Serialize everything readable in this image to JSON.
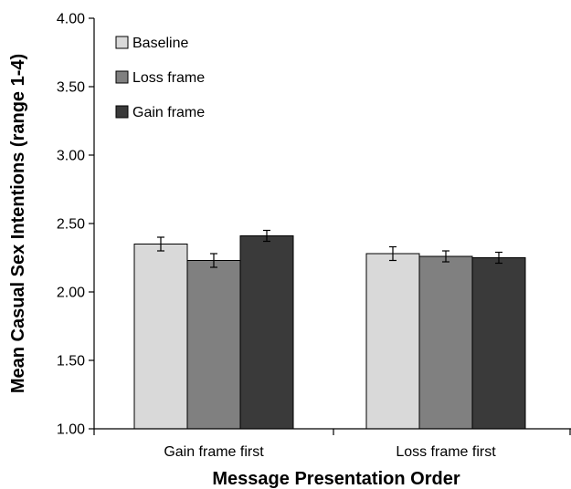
{
  "chart_data": {
    "type": "bar",
    "title": "",
    "xlabel": "Message Presentation Order",
    "ylabel": "Mean Casual Sex Intentions (range 1-4)",
    "ylim": [
      1.0,
      4.0
    ],
    "yticks": [
      "1.00",
      "1.50",
      "2.00",
      "2.50",
      "3.00",
      "3.50",
      "4.00"
    ],
    "ytick_values": [
      1.0,
      1.5,
      2.0,
      2.5,
      3.0,
      3.5,
      4.0
    ],
    "categories": [
      "Gain frame first",
      "Loss frame first"
    ],
    "series": [
      {
        "name": "Baseline",
        "color": "#d9d9d9",
        "values": [
          2.35,
          2.28
        ],
        "errors": [
          0.05,
          0.05
        ]
      },
      {
        "name": "Loss frame",
        "color": "#808080",
        "values": [
          2.23,
          2.26
        ],
        "errors": [
          0.05,
          0.04
        ]
      },
      {
        "name": "Gain frame",
        "color": "#3a3a3a",
        "values": [
          2.41,
          2.25
        ],
        "errors": [
          0.04,
          0.04
        ]
      }
    ],
    "legend_position": "top-left",
    "grid": false
  }
}
